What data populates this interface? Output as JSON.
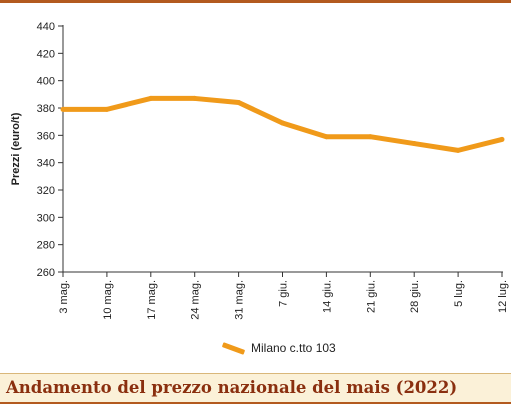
{
  "chart_data": {
    "type": "line",
    "title": "Andamento del prezzo nazionale del mais (2022)",
    "xlabel": "",
    "ylabel": "Prezzi (euro/t)",
    "categories": [
      "3 mag.",
      "10 mag.",
      "17 mag.",
      "24 mag.",
      "31 mag.",
      "7 giu.",
      "14 giu.",
      "21 giu.",
      "28 giu.",
      "5 lug.",
      "12 lug."
    ],
    "ylim": [
      260,
      440
    ],
    "yticks": [
      260,
      280,
      300,
      320,
      340,
      360,
      380,
      400,
      420,
      440
    ],
    "grid": false,
    "legend_position": "bottom-center",
    "series": [
      {
        "name": "Milano  c.tto 103",
        "color": "#f09a1a",
        "values": [
          379,
          379,
          387,
          387,
          384,
          369,
          359,
          359,
          354,
          349,
          357
        ]
      }
    ]
  }
}
